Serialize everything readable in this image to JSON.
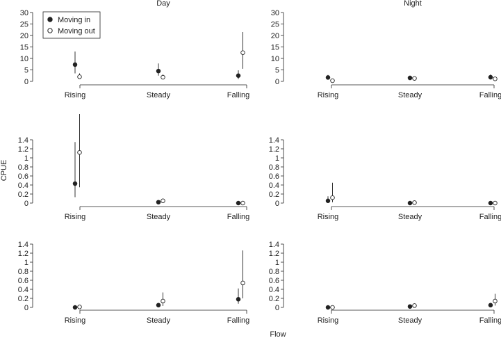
{
  "figure": {
    "xlabel": "Flow",
    "ylabel": "CPUE"
  },
  "legend": {
    "placement": "top-left",
    "items": [
      {
        "label": "Moving in",
        "marker": "filled-circle"
      },
      {
        "label": "Moving out",
        "marker": "open-circle"
      }
    ]
  },
  "chart_data": [
    {
      "type": "scatter",
      "title": "Day",
      "categories": [
        "Rising",
        "Steady",
        "Falling"
      ],
      "ylim": [
        0,
        30
      ],
      "yticks": [
        "0",
        "5",
        "10",
        "15",
        "20",
        "25",
        "30"
      ],
      "series": [
        {
          "name": "Moving in",
          "values": [
            7.3,
            4.5,
            2.5
          ],
          "lower": [
            3.5,
            2.5,
            1.0
          ],
          "upper": [
            13.0,
            7.8,
            4.8
          ]
        },
        {
          "name": "Moving out",
          "values": [
            2.0,
            1.8,
            12.5
          ],
          "lower": [
            1.2,
            1.0,
            5.5
          ],
          "upper": [
            3.5,
            3.0,
            21.5
          ]
        }
      ]
    },
    {
      "type": "scatter",
      "title": "Night",
      "categories": [
        "Rising",
        "Steady",
        "Falling"
      ],
      "ylim": [
        0,
        30
      ],
      "yticks": [
        "0",
        "5",
        "10",
        "15",
        "20",
        "25",
        "30"
      ],
      "series": [
        {
          "name": "Moving in",
          "values": [
            1.7,
            1.5,
            1.8
          ],
          "lower": [
            0.8,
            0.7,
            0.8
          ],
          "upper": [
            2.8,
            2.5,
            3.0
          ]
        },
        {
          "name": "Moving out",
          "values": [
            0.3,
            1.3,
            1.1
          ],
          "lower": [
            0.1,
            0.5,
            0.4
          ],
          "upper": [
            0.7,
            2.2,
            1.9
          ]
        }
      ]
    },
    {
      "type": "scatter",
      "title": "",
      "categories": [
        "Rising",
        "Steady",
        "Falling"
      ],
      "ylim": [
        0,
        1.4
      ],
      "yticks": [
        "0",
        "0.2",
        "0.4",
        "0.6",
        "0.8",
        "1",
        "1.2",
        "1.4"
      ],
      "series": [
        {
          "name": "Moving in",
          "values": [
            0.43,
            0.02,
            0.0
          ],
          "lower": [
            0.13,
            0.0,
            0.0
          ],
          "upper": [
            1.35,
            0.05,
            0.02
          ]
        },
        {
          "name": "Moving out",
          "values": [
            1.12,
            0.05,
            0.0
          ],
          "lower": [
            0.35,
            0.01,
            0.0
          ],
          "upper": [
            1.97,
            0.1,
            0.02
          ]
        }
      ]
    },
    {
      "type": "scatter",
      "title": "",
      "categories": [
        "Rising",
        "Steady",
        "Falling"
      ],
      "ylim": [
        0,
        1.4
      ],
      "yticks": [
        "0",
        "0.2",
        "0.4",
        "0.6",
        "0.8",
        "1",
        "1.2",
        "1.4"
      ],
      "series": [
        {
          "name": "Moving in",
          "values": [
            0.05,
            0.0,
            0.0
          ],
          "lower": [
            0.0,
            0.0,
            0.0
          ],
          "upper": [
            0.15,
            0.02,
            0.02
          ]
        },
        {
          "name": "Moving out",
          "values": [
            0.12,
            0.01,
            0.0
          ],
          "lower": [
            0.02,
            0.0,
            0.0
          ],
          "upper": [
            0.45,
            0.03,
            0.02
          ]
        }
      ]
    },
    {
      "type": "scatter",
      "title": "",
      "categories": [
        "Rising",
        "Steady",
        "Falling"
      ],
      "ylim": [
        0,
        1.4
      ],
      "yticks": [
        "0",
        "0.2",
        "0.4",
        "0.6",
        "0.8",
        "1",
        "1.2",
        "1.4"
      ],
      "series": [
        {
          "name": "Moving in",
          "values": [
            0.0,
            0.05,
            0.18
          ],
          "lower": [
            0.0,
            0.01,
            0.08
          ],
          "upper": [
            0.02,
            0.1,
            0.42
          ]
        },
        {
          "name": "Moving out",
          "values": [
            0.01,
            0.14,
            0.54
          ],
          "lower": [
            0.0,
            0.03,
            0.2
          ],
          "upper": [
            0.03,
            0.33,
            1.26
          ]
        }
      ]
    },
    {
      "type": "scatter",
      "title": "",
      "categories": [
        "Rising",
        "Steady",
        "Falling"
      ],
      "ylim": [
        0,
        1.4
      ],
      "yticks": [
        "0",
        "0.2",
        "0.4",
        "0.6",
        "0.8",
        "1",
        "1.2",
        "1.4"
      ],
      "series": [
        {
          "name": "Moving in",
          "values": [
            0.0,
            0.02,
            0.05
          ],
          "lower": [
            0.0,
            0.0,
            0.01
          ],
          "upper": [
            0.02,
            0.04,
            0.1
          ]
        },
        {
          "name": "Moving out",
          "values": [
            0.0,
            0.04,
            0.14
          ],
          "lower": [
            0.0,
            0.01,
            0.04
          ],
          "upper": [
            0.02,
            0.07,
            0.3
          ]
        }
      ]
    }
  ]
}
